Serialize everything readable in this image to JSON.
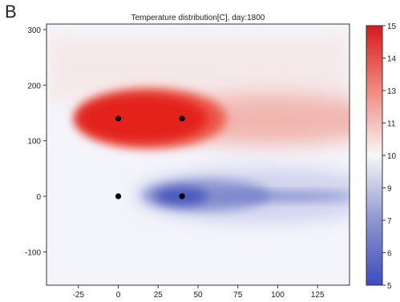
{
  "panel_label": "B",
  "chart_data": {
    "type": "heatmap",
    "title": "Temperature distribution[C], day:1800",
    "xlabel": "",
    "ylabel": "",
    "xlim": [
      -45,
      145
    ],
    "ylim": [
      -160,
      310
    ],
    "x_ticks": [
      -25,
      0,
      25,
      50,
      75,
      100,
      125
    ],
    "y_ticks": [
      -100,
      0,
      100,
      200,
      300
    ],
    "grid": false,
    "colormap": {
      "name": "blue-white-red",
      "low_color": "#3b4cc0",
      "mid_color": "#f7f7f7",
      "high_color": "#e0201c",
      "range": [
        5,
        15
      ],
      "tick_labels": [
        "15",
        "14",
        "13",
        "11",
        "10",
        "9",
        "7",
        "6",
        "5"
      ]
    },
    "hot_plume": {
      "center": [
        0,
        140
      ],
      "peak_temperature": 15,
      "spread_downstream": "toward +x"
    },
    "cold_plume": {
      "center": [
        40,
        0
      ],
      "min_temperature": 6,
      "spread_downstream": "toward +x"
    },
    "wells": [
      {
        "x": 0,
        "y": 140
      },
      {
        "x": 40,
        "y": 140
      },
      {
        "x": 0,
        "y": 0
      },
      {
        "x": 40,
        "y": 0
      }
    ]
  }
}
